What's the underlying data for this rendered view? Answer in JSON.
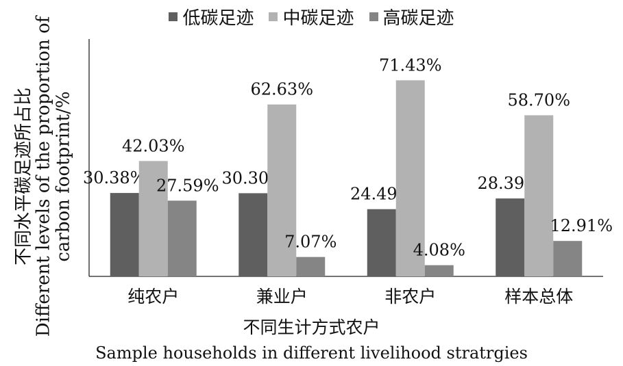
{
  "chart_data": {
    "type": "bar",
    "categories": [
      "纯农户",
      "兼业户",
      "非农户",
      "样本总体"
    ],
    "series": [
      {
        "name": "低碳足迹",
        "values": [
          30.38,
          30.3,
          24.49,
          28.39
        ],
        "color": "#5f5f5f"
      },
      {
        "name": "中碳足迹",
        "values": [
          42.03,
          62.63,
          71.43,
          58.7
        ],
        "color": "#b2b2b2"
      },
      {
        "name": "高碳足迹",
        "values": [
          27.59,
          7.07,
          4.08,
          12.91
        ],
        "color": "#858585"
      }
    ],
    "data_labels": [
      [
        "30.38%",
        "30.30%",
        "24.49%",
        "28.39%"
      ],
      [
        "42.03%",
        "62.63%",
        "71.43%",
        "58.70%"
      ],
      [
        "27.59%",
        "7.07%",
        "4.08%",
        "12.91%"
      ]
    ],
    "xlabel": "不同生计方式农户",
    "xlabel_en": "Sample households in different livelihood stratrgies",
    "ylabel": "不同水平碳足迹所占比",
    "ylabel_en_line1": "Different levels of the proportion of",
    "ylabel_en_line2": "carbon footprint/%",
    "ylim": [
      0,
      80
    ],
    "legend_position": "top",
    "grid": false
  }
}
